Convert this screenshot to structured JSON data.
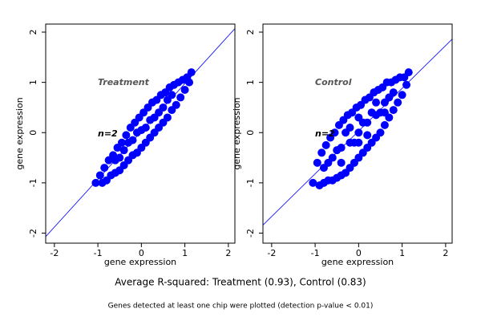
{
  "chart_data": [
    {
      "type": "scatter",
      "title": "Treatment",
      "annotation": "n=2",
      "xlabel": "gene expression",
      "ylabel": "gene expression",
      "xlim": [
        -2.2,
        2.15
      ],
      "ylim": [
        -2.2,
        2.16
      ],
      "xticks": [
        -2,
        -1,
        0,
        1,
        2
      ],
      "yticks": [
        -2,
        -1,
        0,
        1,
        2
      ],
      "color": "#0000ff",
      "x": [
        -1.05,
        -0.95,
        -0.9,
        -0.85,
        -0.8,
        -0.75,
        -0.7,
        -0.65,
        -0.6,
        -0.55,
        -0.5,
        -0.45,
        -0.4,
        -0.35,
        -0.3,
        -0.25,
        -0.2,
        -0.15,
        -0.1,
        -0.05,
        0,
        0.05,
        0.1,
        0.15,
        0.2,
        0.25,
        0.3,
        0.35,
        0.4,
        0.45,
        0.5,
        0.55,
        0.6,
        0.65,
        0.7,
        0.75,
        0.8,
        0.85,
        0.9,
        0.95,
        1.0,
        1.05,
        1.1,
        1.15,
        -0.6,
        -0.4,
        -0.2,
        0,
        0.2,
        0.4,
        0.6,
        -0.3,
        0.1,
        0.5,
        -0.1,
        0.3,
        -0.5,
        0.7
      ],
      "y": [
        -1.0,
        -0.85,
        -1.0,
        -0.7,
        -0.95,
        -0.55,
        -0.85,
        -0.45,
        -0.8,
        -0.3,
        -0.75,
        -0.2,
        -0.65,
        -0.05,
        -0.55,
        0.1,
        -0.45,
        0.2,
        -0.4,
        0.3,
        -0.3,
        0.4,
        -0.2,
        0.5,
        -0.1,
        0.6,
        0.0,
        0.65,
        0.1,
        0.75,
        0.2,
        0.8,
        0.3,
        0.9,
        0.45,
        0.95,
        0.55,
        1.0,
        0.7,
        1.05,
        0.85,
        1.1,
        1.0,
        1.2,
        -0.55,
        -0.35,
        -0.15,
        0.05,
        0.25,
        0.4,
        0.65,
        -0.2,
        0.1,
        0.5,
        0.0,
        0.3,
        -0.5,
        0.75
      ],
      "reference_line": {
        "x": [
          -2.2,
          2.15
        ],
        "y": [
          -2.07,
          2.07
        ],
        "color": "#0000ff"
      }
    },
    {
      "type": "scatter",
      "title": "Control",
      "annotation": "n=2",
      "xlabel": "gene expression",
      "ylabel": "gene expression",
      "xlim": [
        -2.2,
        2.15
      ],
      "ylim": [
        -2.2,
        2.16
      ],
      "xticks": [
        -2,
        -1,
        0,
        1,
        2
      ],
      "yticks": [
        -2,
        -1,
        0,
        1,
        2
      ],
      "color": "#0000ff",
      "x": [
        -1.05,
        -0.95,
        -0.9,
        -0.85,
        -0.8,
        -0.75,
        -0.7,
        -0.65,
        -0.6,
        -0.55,
        -0.5,
        -0.45,
        -0.4,
        -0.35,
        -0.3,
        -0.25,
        -0.2,
        -0.15,
        -0.1,
        -0.05,
        0,
        0.05,
        0.1,
        0.15,
        0.2,
        0.25,
        0.3,
        0.35,
        0.4,
        0.45,
        0.5,
        0.55,
        0.6,
        0.65,
        0.7,
        0.75,
        0.8,
        0.85,
        0.9,
        0.95,
        1.0,
        1.05,
        1.1,
        1.15,
        -0.6,
        -0.4,
        -0.2,
        0,
        0.2,
        0.4,
        0.6,
        -0.3,
        0.1,
        0.5,
        -0.1,
        0.3,
        -0.5,
        0.7,
        -0.7,
        -0.2,
        0.0,
        0.2,
        0.4,
        -0.4,
        0.8,
        -0.8,
        0.0,
        0.6
      ],
      "y": [
        -1.0,
        -0.6,
        -1.05,
        -0.4,
        -1.0,
        -0.25,
        -0.95,
        -0.1,
        -0.95,
        0.0,
        -0.9,
        0.15,
        -0.85,
        0.25,
        -0.8,
        0.35,
        -0.7,
        0.4,
        -0.6,
        0.5,
        -0.5,
        0.55,
        -0.4,
        0.65,
        -0.3,
        0.7,
        -0.2,
        0.8,
        -0.1,
        0.85,
        0.0,
        0.9,
        0.15,
        1.0,
        0.3,
        1.0,
        0.45,
        1.05,
        0.6,
        1.1,
        0.75,
        1.1,
        0.95,
        1.2,
        -0.5,
        -0.3,
        -0.2,
        0.0,
        0.2,
        0.35,
        0.6,
        0.0,
        0.2,
        0.4,
        -0.2,
        0.4,
        -0.35,
        0.7,
        -0.6,
        0.1,
        0.3,
        -0.05,
        0.6,
        -0.6,
        0.8,
        -0.7,
        -0.2,
        0.4
      ],
      "reference_line": {
        "x": [
          -2.2,
          2.15
        ],
        "y": [
          -1.84,
          1.86
        ],
        "color": "#0000ff"
      }
    }
  ],
  "caption": "Average R-squared: Treatment (0.93), Control (0.83)",
  "footnote": "Genes detected at least one chip were plotted (detection p-value < 0.01)"
}
